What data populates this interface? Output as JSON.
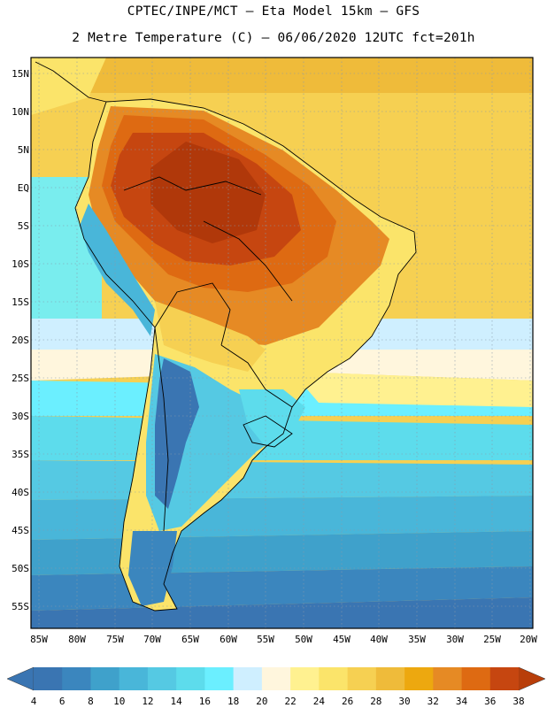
{
  "header": {
    "line1": "CPTEC/INPE/MCT –  Eta Model 15km – GFS",
    "line2": "2 Metre Temperature (C) – 06/06/2020 12UTC fct=201h"
  },
  "map": {
    "region": "South America",
    "lat_labels": [
      "15N",
      "10N",
      "5N",
      "EQ",
      "5S",
      "10S",
      "15S",
      "20S",
      "25S",
      "30S",
      "35S",
      "40S",
      "45S",
      "50S",
      "55S"
    ],
    "lon_labels": [
      "85W",
      "80W",
      "75W",
      "70W",
      "65W",
      "60W",
      "55W",
      "50W",
      "45W",
      "40W",
      "35W",
      "30W",
      "25W",
      "20W"
    ]
  },
  "colorbar": {
    "labels": [
      "4",
      "6",
      "8",
      "10",
      "12",
      "14",
      "16",
      "18",
      "20",
      "22",
      "24",
      "26",
      "28",
      "30",
      "32",
      "34",
      "36",
      "38"
    ],
    "below_color": "#3a75b2",
    "above_color": "#b83e0a",
    "colors": [
      "#3a75b2",
      "#3b86be",
      "#3fa1cb",
      "#49b6d9",
      "#55c9e3",
      "#5ddcec",
      "#6befff",
      "#cfefff",
      "#fff6dd",
      "#fff190",
      "#fbe46a",
      "#f6d052",
      "#efbb3a",
      "#eda80f",
      "#e68a24",
      "#de6a12",
      "#c64610"
    ]
  }
}
